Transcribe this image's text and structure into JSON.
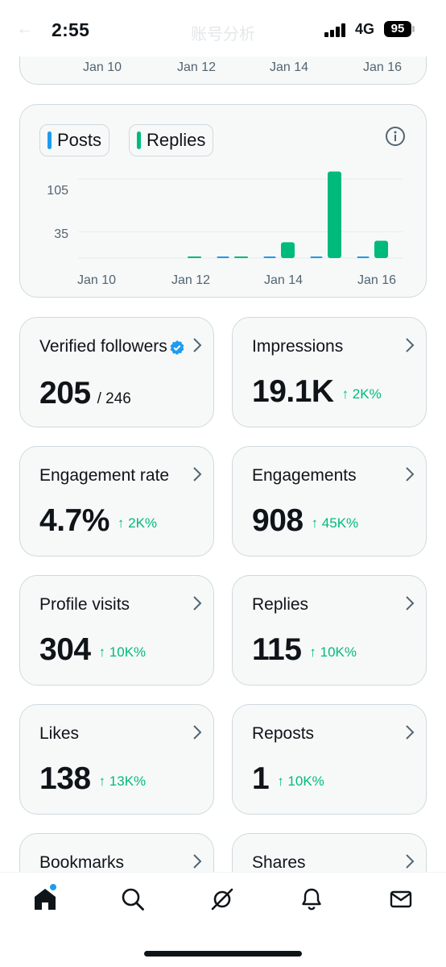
{
  "status_bar": {
    "time": "2:55",
    "network": "4G",
    "battery": "95",
    "ghost_title": "账号分析"
  },
  "top_chart_axis": [
    "Jan 10",
    "Jan 12",
    "Jan 14",
    "Jan 16"
  ],
  "legend": {
    "posts": "Posts",
    "replies": "Replies",
    "posts_color": "#1d9bf0",
    "replies_color": "#00ba7c"
  },
  "chart_data": {
    "type": "bar",
    "categories": [
      "Jan 10",
      "Jan 11",
      "Jan 12",
      "Jan 13",
      "Jan 14",
      "Jan 15",
      "Jan 16"
    ],
    "x_tick_labels": [
      "Jan 10",
      "Jan 12",
      "Jan 14",
      "Jan 16"
    ],
    "y_tick_labels": [
      "105",
      "35"
    ],
    "y_ticks": [
      105,
      35
    ],
    "ylim": [
      0,
      118
    ],
    "series": [
      {
        "name": "Posts",
        "color": "#1d9bf0",
        "values": [
          0,
          0,
          0,
          1,
          1,
          2,
          1
        ]
      },
      {
        "name": "Replies",
        "color": "#00ba7c",
        "values": [
          0,
          0,
          1,
          1,
          21,
          115,
          23
        ]
      }
    ]
  },
  "stats": [
    {
      "title": "Verified followers",
      "value": "205",
      "sub": "/ 246",
      "change": "",
      "verified": true
    },
    {
      "title": "Impressions",
      "value": "19.1K",
      "sub": "",
      "change": "↑ 2K%"
    },
    {
      "title": "Engagement rate",
      "value": "4.7%",
      "sub": "",
      "change": "↑ 2K%"
    },
    {
      "title": "Engagements",
      "value": "908",
      "sub": "",
      "change": "↑ 45K%"
    },
    {
      "title": "Profile visits",
      "value": "304",
      "sub": "",
      "change": "↑ 10K%"
    },
    {
      "title": "Replies",
      "value": "115",
      "sub": "",
      "change": "↑ 10K%"
    },
    {
      "title": "Likes",
      "value": "138",
      "sub": "",
      "change": "↑ 13K%"
    },
    {
      "title": "Reposts",
      "value": "1",
      "sub": "",
      "change": "↑ 10K%"
    },
    {
      "title": "Bookmarks",
      "value": "",
      "sub": "",
      "change": ""
    },
    {
      "title": "Shares",
      "value": "",
      "sub": "",
      "change": ""
    }
  ],
  "nav": [
    "home-icon",
    "search-icon",
    "grok-icon",
    "notifications-icon",
    "messages-icon"
  ]
}
